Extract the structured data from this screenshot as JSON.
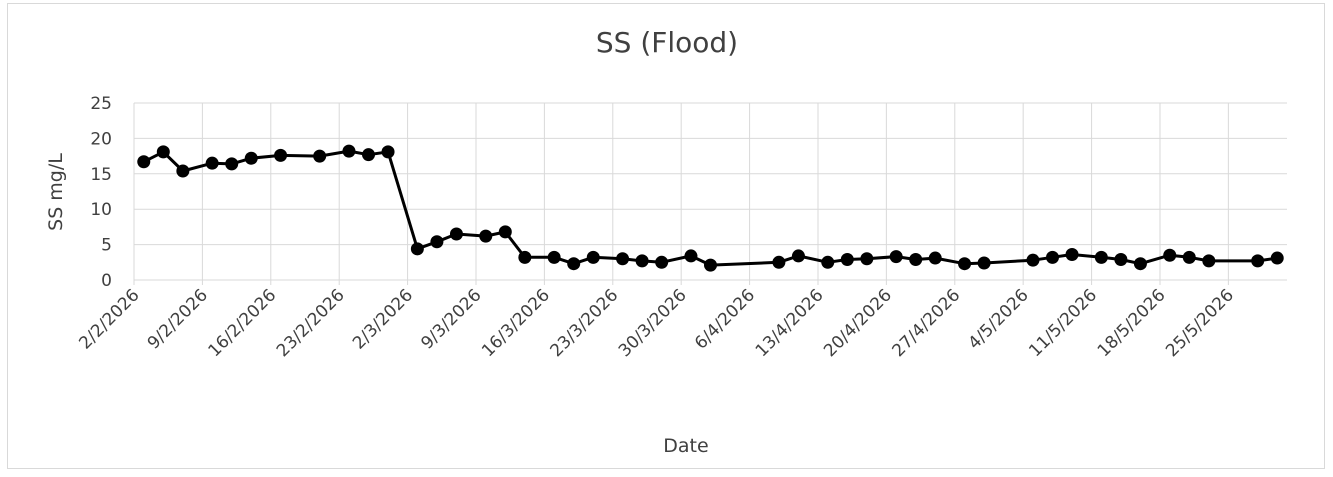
{
  "chart_data": {
    "type": "line",
    "title": "SS (Flood)",
    "x_label": "Date",
    "y_label": "SS mg/L",
    "x": [
      "2026-02-03",
      "2026-02-05",
      "2026-02-07",
      "2026-02-10",
      "2026-02-12",
      "2026-02-14",
      "2026-02-17",
      "2026-02-21",
      "2026-02-24",
      "2026-02-26",
      "2026-02-28",
      "2026-03-03",
      "2026-03-05",
      "2026-03-07",
      "2026-03-10",
      "2026-03-12",
      "2026-03-14",
      "2026-03-17",
      "2026-03-19",
      "2026-03-21",
      "2026-03-24",
      "2026-03-26",
      "2026-03-28",
      "2026-03-31",
      "2026-04-02",
      "2026-04-09",
      "2026-04-11",
      "2026-04-14",
      "2026-04-16",
      "2026-04-18",
      "2026-04-21",
      "2026-04-23",
      "2026-04-25",
      "2026-04-28",
      "2026-04-30",
      "2026-05-05",
      "2026-05-07",
      "2026-05-09",
      "2026-05-12",
      "2026-05-14",
      "2026-05-16",
      "2026-05-19",
      "2026-05-21",
      "2026-05-23",
      "2026-05-28",
      "2026-05-30"
    ],
    "series": [
      {
        "name": "SS",
        "color": "#000000",
        "values": [
          16.7,
          18.1,
          15.4,
          16.5,
          16.4,
          17.2,
          17.6,
          17.5,
          18.2,
          17.7,
          18.1,
          4.4,
          5.4,
          6.5,
          6.2,
          6.8,
          3.2,
          3.2,
          2.3,
          3.2,
          3.0,
          2.7,
          2.5,
          3.4,
          2.1,
          2.5,
          3.4,
          2.5,
          2.9,
          3.0,
          3.3,
          2.9,
          3.1,
          2.3,
          2.4,
          2.8,
          3.2,
          3.6,
          3.2,
          2.9,
          2.3,
          3.5,
          3.2,
          2.7,
          2.7,
          3.1
        ]
      }
    ],
    "xlim": [
      "2026-02-02",
      "2026-05-31"
    ],
    "xticks": [
      {
        "value": "2026-02-02",
        "label": "2/2/2026"
      },
      {
        "value": "2026-02-09",
        "label": "9/2/2026"
      },
      {
        "value": "2026-02-16",
        "label": "16/2/2026"
      },
      {
        "value": "2026-02-23",
        "label": "23/2/2026"
      },
      {
        "value": "2026-03-02",
        "label": "2/3/2026"
      },
      {
        "value": "2026-03-09",
        "label": "9/3/2026"
      },
      {
        "value": "2026-03-16",
        "label": "16/3/2026"
      },
      {
        "value": "2026-03-23",
        "label": "23/3/2026"
      },
      {
        "value": "2026-03-30",
        "label": "30/3/2026"
      },
      {
        "value": "2026-04-06",
        "label": "6/4/2026"
      },
      {
        "value": "2026-04-13",
        "label": "13/4/2026"
      },
      {
        "value": "2026-04-20",
        "label": "20/4/2026"
      },
      {
        "value": "2026-04-27",
        "label": "27/4/2026"
      },
      {
        "value": "2026-05-04",
        "label": "4/5/2026"
      },
      {
        "value": "2026-05-11",
        "label": "11/5/2026"
      },
      {
        "value": "2026-05-18",
        "label": "18/5/2026"
      },
      {
        "value": "2026-05-25",
        "label": "25/5/2026"
      }
    ],
    "ylim": [
      0,
      25
    ],
    "yticks": [
      0,
      5,
      10,
      15,
      20,
      25
    ],
    "grid": true
  }
}
